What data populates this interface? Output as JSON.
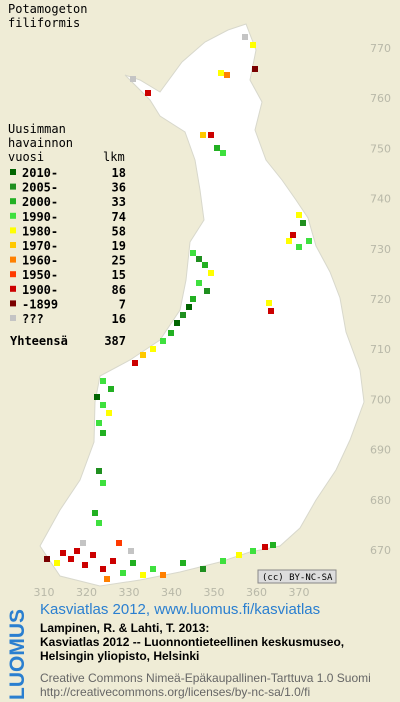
{
  "title": [
    "Potamogeton",
    "filiformis"
  ],
  "legend": {
    "heading": [
      "Uusimman",
      "havainnon"
    ],
    "col_year": "vuosi",
    "col_count": "lkm",
    "rows": [
      {
        "label": "2010-",
        "count": 18,
        "color": "#006400"
      },
      {
        "label": "2005-",
        "count": 36,
        "color": "#1f8f1f"
      },
      {
        "label": "2000-",
        "count": 33,
        "color": "#22b022"
      },
      {
        "label": "1990-",
        "count": 74,
        "color": "#3ee03e"
      },
      {
        "label": "1980-",
        "count": 58,
        "color": "#ffff00"
      },
      {
        "label": "1970-",
        "count": 19,
        "color": "#ffc800"
      },
      {
        "label": "1960-",
        "count": 25,
        "color": "#ff8000"
      },
      {
        "label": "1950-",
        "count": 15,
        "color": "#ff3a00"
      },
      {
        "label": "1900-",
        "count": 86,
        "color": "#cc0000"
      },
      {
        "label": "-1899",
        "count": 7,
        "color": "#7a0000"
      },
      {
        "label": "???",
        "count": 16,
        "color": "#c4c4c4"
      }
    ],
    "total_label": "Yhteensä",
    "total_count": 387
  },
  "x_labels": [
    "310",
    "320",
    "330",
    "340",
    "350",
    "360",
    "370"
  ],
  "y_labels": [
    "770",
    "760",
    "750",
    "740",
    "730",
    "720",
    "710",
    "700",
    "690",
    "680",
    "670"
  ],
  "license_badge": "(cc) BY-NC-SA",
  "footer": {
    "brand": "LUOMUS",
    "site": "Kasviatlas 2012, www.luomus.fi/kasviatlas",
    "citation": [
      "Lampinen, R. & Lahti, T. 2013:",
      "Kasviatlas 2012 -- Luonnontieteellinen keskusmuseo,",
      "Helsingin yliopisto, Helsinki"
    ],
    "license": [
      "Creative Commons Nimeä-Epäkaupallinen-Tarttuva 1.0 Suomi",
      "http://creativecommons.org/licenses/by-nc-sa/1.0/fi"
    ]
  }
}
